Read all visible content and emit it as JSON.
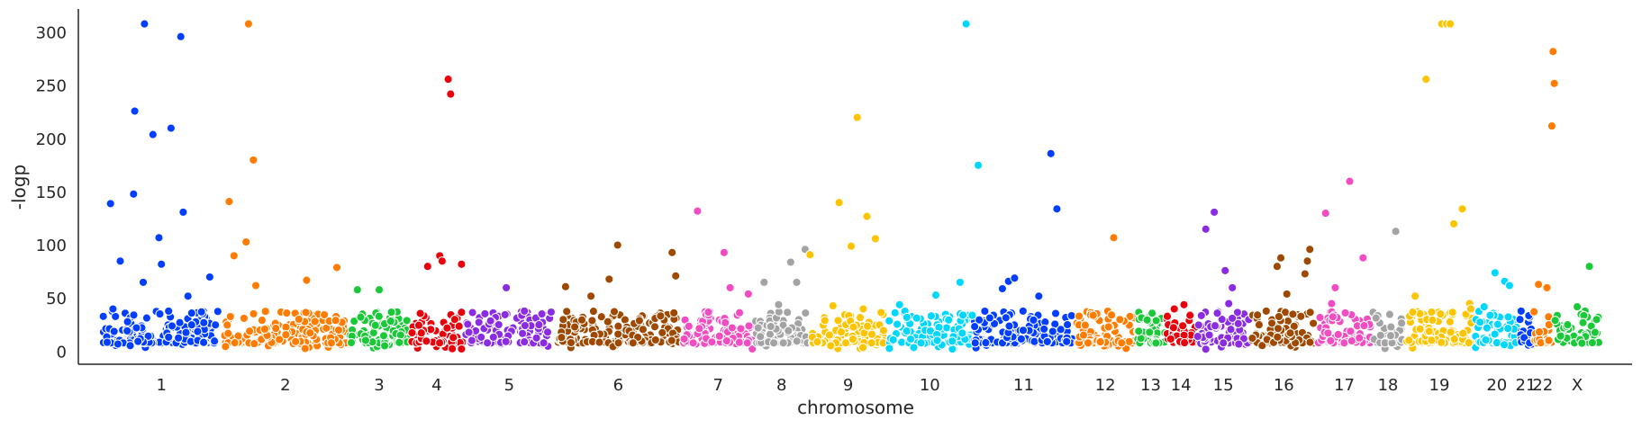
{
  "chart_data": {
    "type": "scatter",
    "title": "",
    "xlabel": "chromosome",
    "ylabel": "-logp",
    "ylim": [
      -12,
      322
    ],
    "y_ticks": [
      0,
      50,
      100,
      150,
      200,
      250,
      300
    ],
    "grid": false,
    "legend": "none",
    "categories": [
      "1",
      "2",
      "3",
      "4",
      "5",
      "6",
      "7",
      "8",
      "9",
      "10",
      "11",
      "12",
      "13",
      "14",
      "15",
      "16",
      "17",
      "18",
      "19",
      "20",
      "21",
      "22",
      "X"
    ],
    "chromosome_colors": {
      "1": "#023eff",
      "2": "#ff7c00",
      "3": "#1ac938",
      "4": "#e8000b",
      "5": "#8b2be2",
      "6": "#9f4800",
      "7": "#f14cc1",
      "8": "#a3a3a3",
      "9": "#ffc400",
      "10": "#00d7ff",
      "11": "#023eff",
      "12": "#ff7c00",
      "13": "#1ac938",
      "14": "#e8000b",
      "15": "#8b2be2",
      "16": "#9f4800",
      "17": "#f14cc1",
      "18": "#a3a3a3",
      "19": "#ffc400",
      "20": "#00d7ff",
      "21": "#023eff",
      "22": "#ff7c00",
      "X": "#1ac938"
    },
    "chromosome_extent": [
      {
        "chrom": "1",
        "start": 0.0,
        "end": 1.0
      },
      {
        "chrom": "2",
        "start": 1.0,
        "end": 2.05
      },
      {
        "chrom": "3",
        "start": 2.05,
        "end": 2.55
      },
      {
        "chrom": "4",
        "start": 2.55,
        "end": 3.0
      },
      {
        "chrom": "5",
        "start": 3.0,
        "end": 3.75
      },
      {
        "chrom": "6",
        "start": 3.75,
        "end": 4.8
      },
      {
        "chrom": "7",
        "start": 4.8,
        "end": 5.4
      },
      {
        "chrom": "8",
        "start": 5.4,
        "end": 5.85
      },
      {
        "chrom": "9",
        "start": 5.85,
        "end": 6.5
      },
      {
        "chrom": "10",
        "start": 6.5,
        "end": 7.2
      },
      {
        "chrom": "11",
        "start": 7.2,
        "end": 8.05
      },
      {
        "chrom": "12",
        "start": 8.05,
        "end": 8.55
      },
      {
        "chrom": "13",
        "start": 8.55,
        "end": 8.8
      },
      {
        "chrom": "14",
        "start": 8.8,
        "end": 9.05
      },
      {
        "chrom": "15",
        "start": 9.05,
        "end": 9.5
      },
      {
        "chrom": "16",
        "start": 9.5,
        "end": 10.05
      },
      {
        "chrom": "17",
        "start": 10.05,
        "end": 10.5
      },
      {
        "chrom": "18",
        "start": 10.5,
        "end": 10.77
      },
      {
        "chrom": "19",
        "start": 10.77,
        "end": 11.35
      },
      {
        "chrom": "20",
        "start": 11.35,
        "end": 11.72
      },
      {
        "chrom": "21",
        "start": 11.72,
        "end": 11.83
      },
      {
        "chrom": "22",
        "start": 11.83,
        "end": 12.0
      },
      {
        "chrom": "X",
        "start": 12.0,
        "end": 12.4
      }
    ],
    "series": [
      {
        "chrom": "1",
        "x": [
          0.08,
          0.1,
          0.16,
          0.22,
          0.27,
          0.28,
          0.35,
          0.36,
          0.43,
          0.48,
          0.5,
          0.56,
          0.58,
          0.66,
          0.68,
          0.72,
          0.75,
          0.9
        ],
        "y": [
          139,
          40,
          85,
          28,
          148,
          226,
          65,
          308,
          204,
          107,
          82,
          38,
          210,
          296,
          131,
          52,
          25,
          70
        ]
      },
      {
        "chrom": "2",
        "x": [
          1.06,
          1.1,
          1.2,
          1.22,
          1.26,
          1.28,
          1.7,
          1.95
        ],
        "y": [
          141,
          90,
          103,
          308,
          180,
          62,
          67,
          79
        ]
      },
      {
        "chrom": "3",
        "x": [
          2.12,
          2.3,
          2.4
        ],
        "y": [
          58,
          58,
          37
        ]
      },
      {
        "chrom": "4",
        "x": [
          2.7,
          2.8,
          2.87,
          2.89,
          2.82,
          2.98
        ],
        "y": [
          80,
          90,
          256,
          242,
          85,
          82
        ]
      },
      {
        "chrom": "5",
        "x": [
          3.35,
          3.5
        ],
        "y": [
          60,
          38
        ]
      },
      {
        "chrom": "6",
        "x": [
          3.84,
          4.05,
          4.2,
          4.27,
          4.45,
          4.72,
          4.75
        ],
        "y": [
          61,
          52,
          68,
          100,
          29,
          93,
          71
        ]
      },
      {
        "chrom": "7",
        "x": [
          4.93,
          5.02,
          5.15,
          5.2,
          5.35
        ],
        "y": [
          132,
          37,
          93,
          60,
          54
        ]
      },
      {
        "chrom": "8",
        "x": [
          5.48,
          5.6,
          5.7,
          5.75,
          5.82
        ],
        "y": [
          65,
          44,
          84,
          65,
          96
        ]
      },
      {
        "chrom": "9",
        "x": [
          5.86,
          6.05,
          6.1,
          6.2,
          6.25,
          6.3,
          6.33,
          6.4
        ],
        "y": [
          91,
          43,
          140,
          99,
          220,
          40,
          127,
          106
        ]
      },
      {
        "chrom": "10",
        "x": [
          6.6,
          6.9,
          7.1,
          7.15,
          7.2,
          7.25
        ],
        "y": [
          44,
          53,
          65,
          308,
          34,
          175
        ]
      },
      {
        "chrom": "11",
        "x": [
          7.45,
          7.5,
          7.55,
          7.62,
          7.75,
          7.85,
          7.9
        ],
        "y": [
          59,
          66,
          69,
          38,
          52,
          186,
          134
        ]
      },
      {
        "chrom": "12",
        "x": [
          8.2,
          8.37,
          8.42
        ],
        "y": [
          34,
          107,
          30
        ]
      },
      {
        "chrom": "13",
        "x": [
          8.72
        ],
        "y": [
          29
        ]
      },
      {
        "chrom": "14",
        "x": [
          8.87,
          8.95,
          9.0
        ],
        "y": [
          40,
          44,
          34
        ]
      },
      {
        "chrom": "15",
        "x": [
          9.13,
          9.2,
          9.29,
          9.32,
          9.35
        ],
        "y": [
          115,
          131,
          76,
          45,
          60
        ]
      },
      {
        "chrom": "16",
        "x": [
          9.63,
          9.72,
          9.75,
          9.8,
          9.85,
          9.95,
          9.97,
          9.99
        ],
        "y": [
          38,
          80,
          88,
          54,
          35,
          73,
          85,
          96
        ]
      },
      {
        "chrom": "17",
        "x": [
          10.12,
          10.17,
          10.2,
          10.32,
          10.43
        ],
        "y": [
          130,
          45,
          60,
          160,
          88
        ]
      },
      {
        "chrom": "18",
        "x": [
          10.7
        ],
        "y": [
          113
        ]
      },
      {
        "chrom": "19",
        "x": [
          10.84,
          10.86,
          10.95,
          11.08,
          11.12,
          11.15,
          11.18,
          11.25,
          11.28,
          11.31,
          11.32
        ],
        "y": [
          37,
          52,
          256,
          308,
          308,
          308,
          120,
          134,
          35,
          45,
          40
        ]
      },
      {
        "chrom": "20",
        "x": [
          11.43,
          11.48,
          11.52,
          11.6,
          11.64
        ],
        "y": [
          42,
          34,
          74,
          66,
          62
        ]
      },
      {
        "chrom": "22",
        "x": [
          11.88,
          11.95,
          11.99,
          12.0,
          12.01
        ],
        "y": [
          63,
          60,
          212,
          282,
          252
        ]
      },
      {
        "chrom": "X",
        "x": [
          12.2,
          12.3,
          12.36
        ],
        "y": [
          42,
          80,
          30
        ]
      }
    ]
  }
}
